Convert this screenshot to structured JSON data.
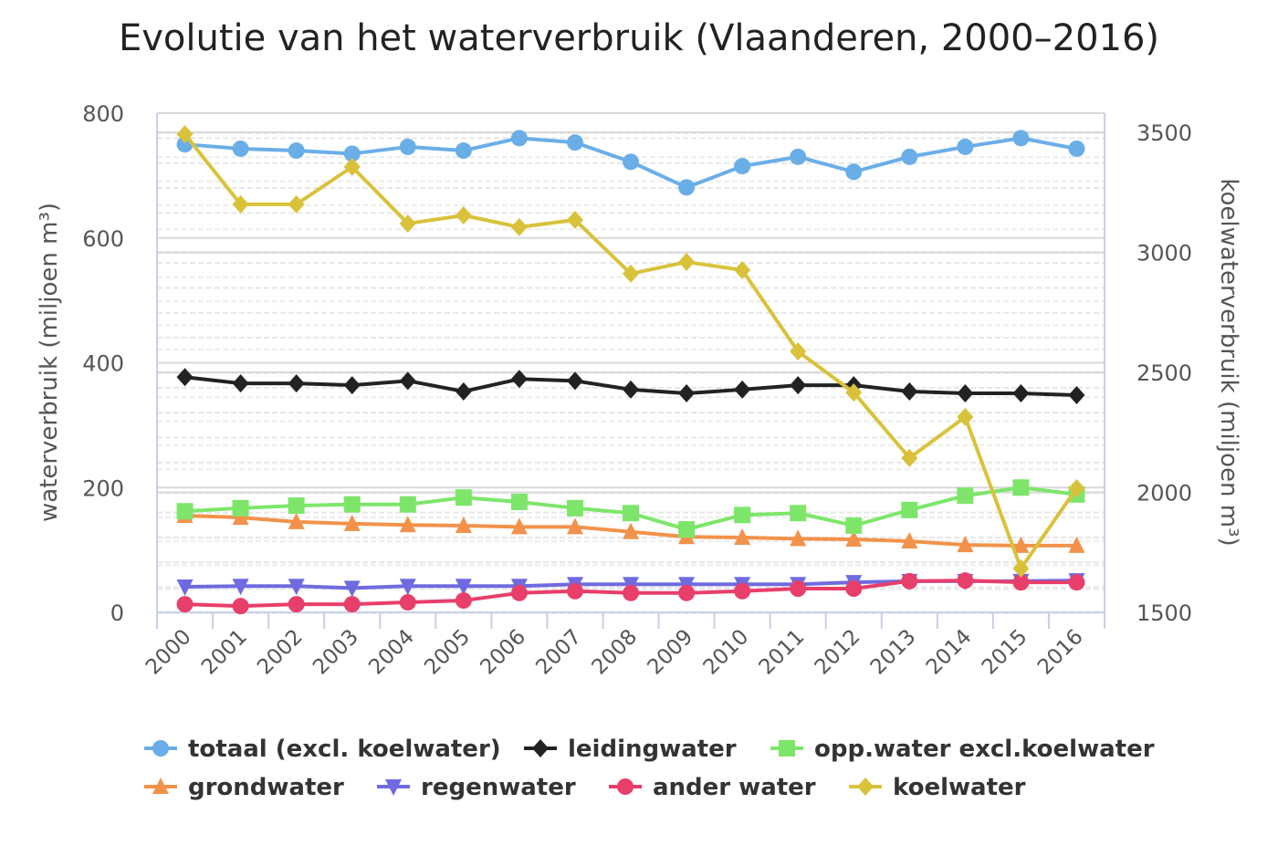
{
  "chart_data": {
    "type": "line",
    "title": "Evolutie van het waterverbruik (Vlaanderen, 2000–2016)",
    "xlabel": "",
    "ylabel": "waterverbruik (miljoen m³)",
    "ylabel_right": "koelwaterverbruik (miljoen m³)",
    "ylim": [
      0,
      800
    ],
    "ylim_right": [
      1500,
      3500
    ],
    "yticks": [
      "0",
      "200",
      "400",
      "600",
      "800"
    ],
    "yticks_right": [
      "1500",
      "2000",
      "2500",
      "3000",
      "3500"
    ],
    "grid": true,
    "legend_position": "bottom",
    "categories": [
      "2000",
      "2001",
      "2002",
      "2003",
      "2004",
      "2005",
      "2006",
      "2007",
      "2008",
      "2009",
      "2010",
      "2011",
      "2012",
      "2013",
      "2014",
      "2015",
      "2016"
    ],
    "series": [
      {
        "name": "totaal (excl. koelwater)",
        "axis": "left",
        "color": "#6aaee8",
        "marker": "circle",
        "values": [
          750,
          743,
          740,
          735,
          746,
          740,
          760,
          753,
          722,
          681,
          715,
          730,
          706,
          730,
          746,
          760,
          743
        ]
      },
      {
        "name": "leidingwater",
        "axis": "left",
        "color": "#222222",
        "marker": "diamond",
        "values": [
          377,
          367,
          367,
          364,
          371,
          354,
          374,
          371,
          357,
          351,
          357,
          364,
          364,
          354,
          351,
          351,
          348
        ]
      },
      {
        "name": "opp.water excl.koelwater",
        "axis": "left",
        "color": "#7de66a",
        "marker": "square",
        "values": [
          162,
          167,
          171,
          173,
          173,
          184,
          177,
          167,
          159,
          133,
          156,
          159,
          139,
          164,
          187,
          200,
          189
        ]
      },
      {
        "name": "grondwater",
        "axis": "left",
        "color": "#f2924a",
        "marker": "triangle",
        "values": [
          155,
          152,
          145,
          142,
          140,
          139,
          137,
          137,
          129,
          121,
          120,
          118,
          117,
          114,
          108,
          107,
          107
        ]
      },
      {
        "name": "regenwater",
        "axis": "left",
        "color": "#6f6ae0",
        "marker": "triangle-down",
        "values": [
          41,
          42,
          42,
          39,
          42,
          42,
          42,
          45,
          45,
          45,
          45,
          45,
          48,
          50,
          50,
          50,
          51
        ]
      },
      {
        "name": "ander water",
        "axis": "left",
        "color": "#e83e6a",
        "marker": "circle",
        "values": [
          13,
          10,
          13,
          13,
          16,
          19,
          31,
          34,
          31,
          31,
          34,
          38,
          38,
          50,
          51,
          48,
          48
        ]
      },
      {
        "name": "koelwater",
        "axis": "right",
        "color": "#d9c23a",
        "marker": "diamond",
        "values": [
          3492,
          3200,
          3200,
          3356,
          3120,
          3154,
          3105,
          3135,
          2911,
          2960,
          2926,
          2587,
          2416,
          2143,
          2314,
          1683,
          2017
        ]
      }
    ]
  }
}
